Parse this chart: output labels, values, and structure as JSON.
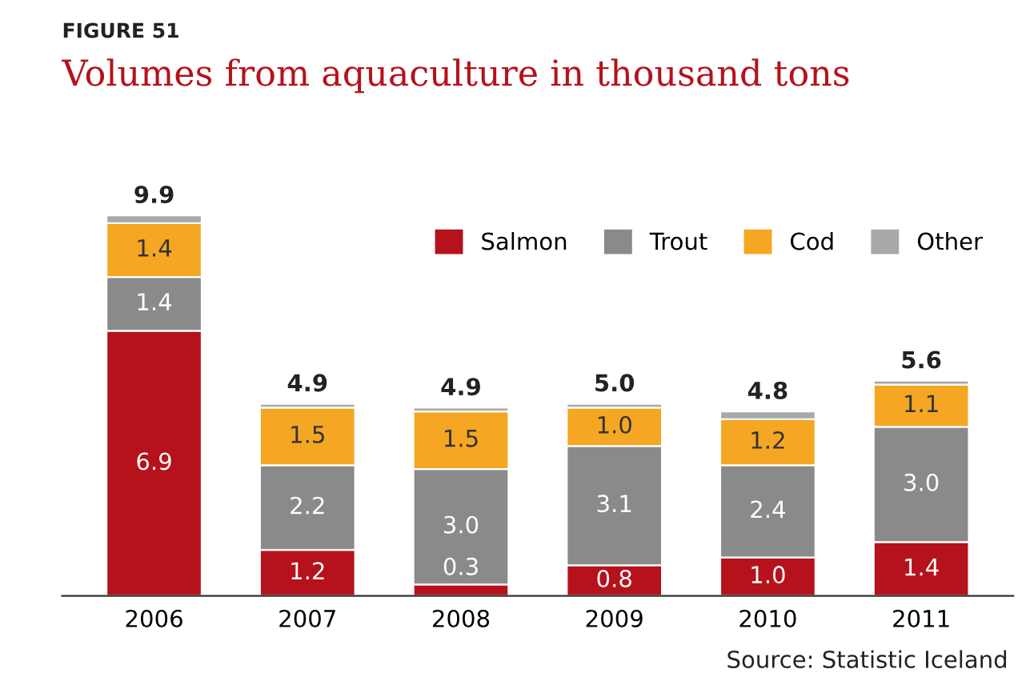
{
  "chart_data": {
    "type": "bar",
    "subtitle": "FIGURE 51",
    "title": "Volumes from aquaculture in thousand tons",
    "categories": [
      "2006",
      "2007",
      "2008",
      "2009",
      "2010",
      "2011"
    ],
    "stacked": true,
    "series": [
      {
        "name": "Salmon",
        "color": "#b5121b",
        "values": [
          6.9,
          1.2,
          0.3,
          0.8,
          1.0,
          1.4
        ],
        "value_labels": [
          "6.9",
          "1.2",
          "0.3",
          "0.8",
          "1.0",
          "1.4"
        ]
      },
      {
        "name": "Trout",
        "color": "#8a8a8a",
        "values": [
          1.4,
          2.2,
          3.0,
          3.1,
          2.4,
          3.0
        ],
        "value_labels": [
          "1.4",
          "2.2",
          "3.0",
          "3.1",
          "2.4",
          "3.0"
        ]
      },
      {
        "name": "Cod",
        "color": "#f5a623",
        "values": [
          1.4,
          1.5,
          1.5,
          1.0,
          1.2,
          1.1
        ],
        "value_labels": [
          "1.4",
          "1.5",
          "1.5",
          "1.0",
          "1.2",
          "1.1"
        ]
      },
      {
        "name": "Other",
        "color": "#a8a8a8",
        "values": [
          0.2,
          0.1,
          0.1,
          0.1,
          0.2,
          0.1
        ],
        "value_labels": [
          null,
          null,
          null,
          null,
          null,
          null
        ]
      }
    ],
    "totals": [
      "9.9",
      "4.9",
      "4.9",
      "5.0",
      "4.8",
      "5.6"
    ],
    "legend": "top right",
    "grid": false,
    "annotations": [
      "Source: Statistic Iceland"
    ]
  }
}
